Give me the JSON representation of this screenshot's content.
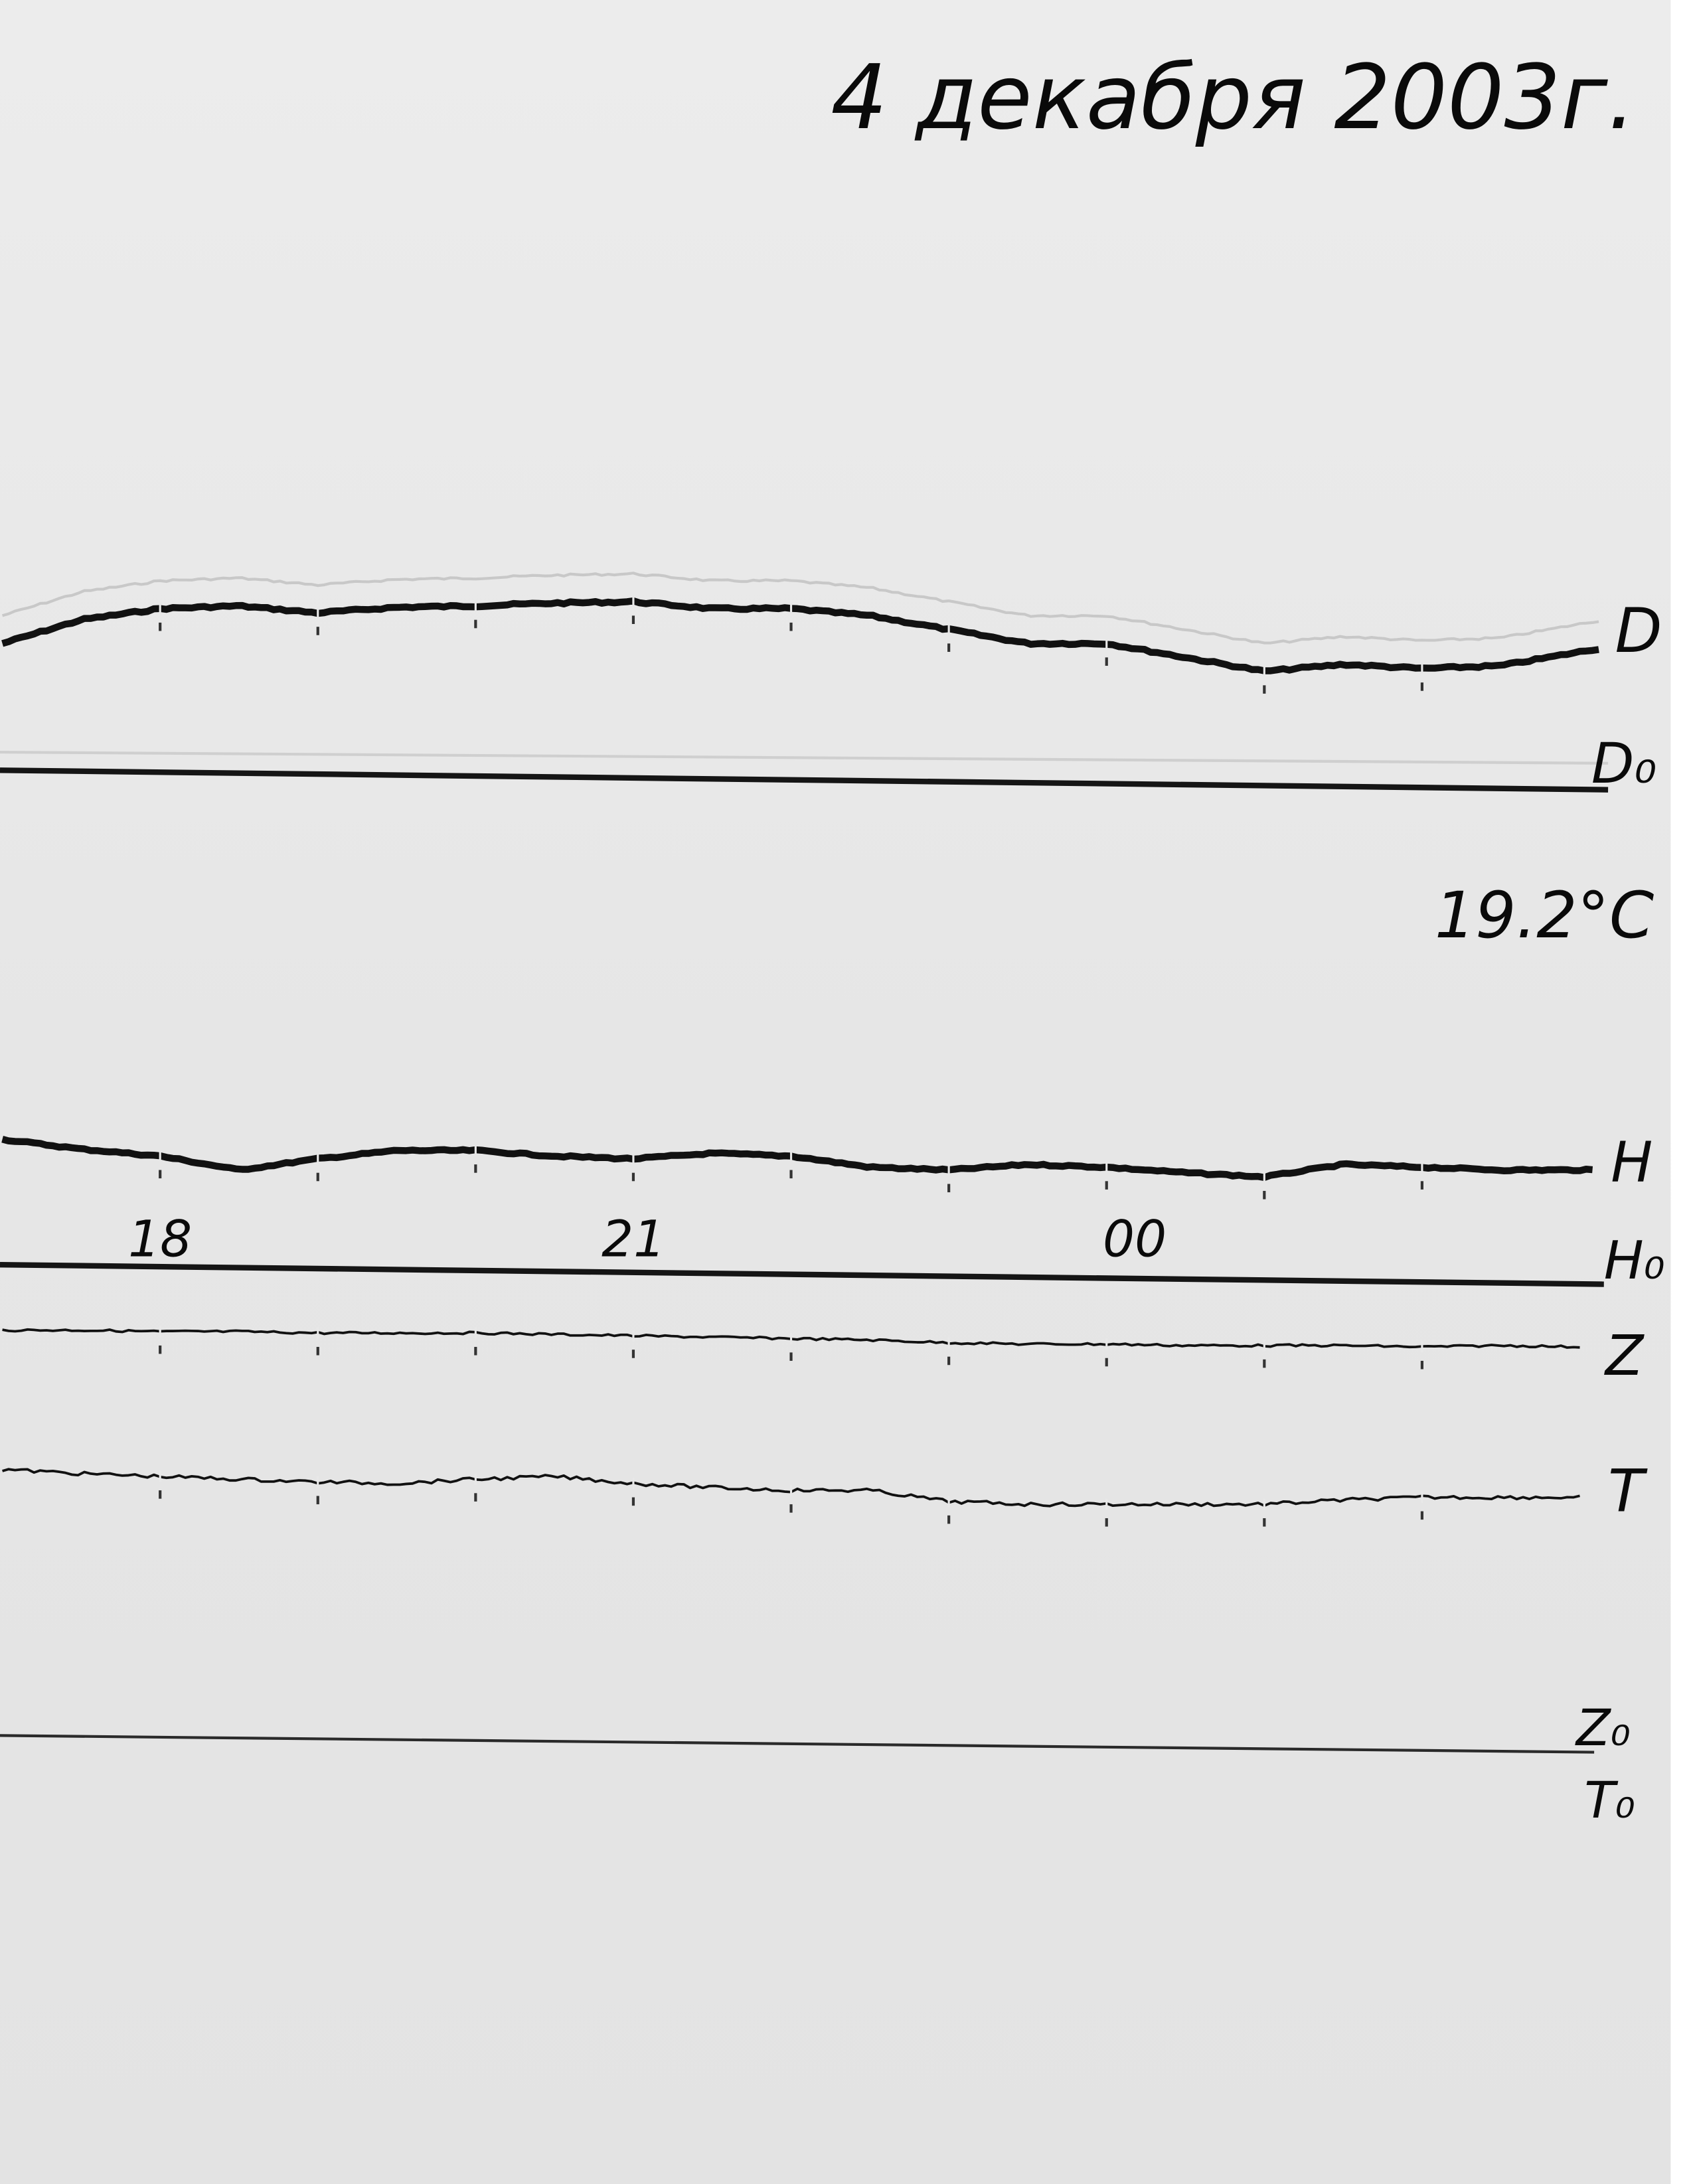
{
  "header": {
    "date": "4 декабря 2003г."
  },
  "annotations": {
    "temperature": "19.2°C"
  },
  "chart_data": {
    "type": "line",
    "title": "4 декабря 2003г.",
    "xlabel": "",
    "ylabel": "",
    "x_tick_labels": [
      {
        "hour": 18,
        "label": "18"
      },
      {
        "hour": 21,
        "label": "21"
      },
      {
        "hour": 24,
        "label": "00"
      }
    ],
    "x_range_hours": [
      17.0,
      27.2
    ],
    "hour_marks": [
      18,
      19,
      20,
      21,
      22,
      23,
      24,
      25,
      26
    ],
    "grid": false,
    "x": [
      17.0,
      17.5,
      18.0,
      18.5,
      19.0,
      19.5,
      20.0,
      20.5,
      21.0,
      21.5,
      22.0,
      22.5,
      23.0,
      23.5,
      24.0,
      24.5,
      25.0,
      25.5,
      26.0,
      26.5,
      27.0
    ],
    "series": [
      {
        "name": "D",
        "baseline": "D₀",
        "values": [
          3.8,
          5.5,
          6.3,
          6.5,
          6.0,
          6.4,
          6.5,
          6.7,
          6.8,
          6.3,
          6.3,
          5.8,
          4.8,
          3.8,
          3.8,
          2.8,
          1.8,
          2.3,
          2.0,
          2.2,
          3.2
        ]
      },
      {
        "name": "H",
        "baseline": "H₀",
        "values": [
          4.2,
          3.5,
          3.0,
          2.0,
          2.8,
          3.4,
          3.4,
          3.0,
          2.8,
          3.2,
          3.0,
          2.2,
          2.0,
          2.4,
          2.2,
          1.8,
          1.5,
          2.4,
          2.2,
          2.0,
          2.0
        ]
      },
      {
        "name": "Z",
        "baseline": "Z₀",
        "values": [
          2.5,
          2.5,
          2.4,
          2.4,
          2.3,
          2.3,
          2.3,
          2.2,
          2.1,
          2.0,
          1.9,
          1.8,
          1.6,
          1.5,
          1.5,
          1.4,
          1.4,
          1.4,
          1.3,
          1.4,
          1.3
        ]
      },
      {
        "name": "T",
        "baseline": "T₀",
        "values": [
          4.5,
          4.2,
          4.0,
          3.8,
          3.6,
          3.5,
          3.8,
          4.0,
          3.5,
          3.2,
          3.0,
          3.0,
          2.2,
          2.0,
          2.0,
          2.0,
          2.0,
          2.3,
          2.5,
          2.5,
          2.5
        ]
      }
    ],
    "colors": {
      "paper": "#e9e9e9",
      "trace": "#111111",
      "faint_trace": "#c8c8c8"
    }
  }
}
